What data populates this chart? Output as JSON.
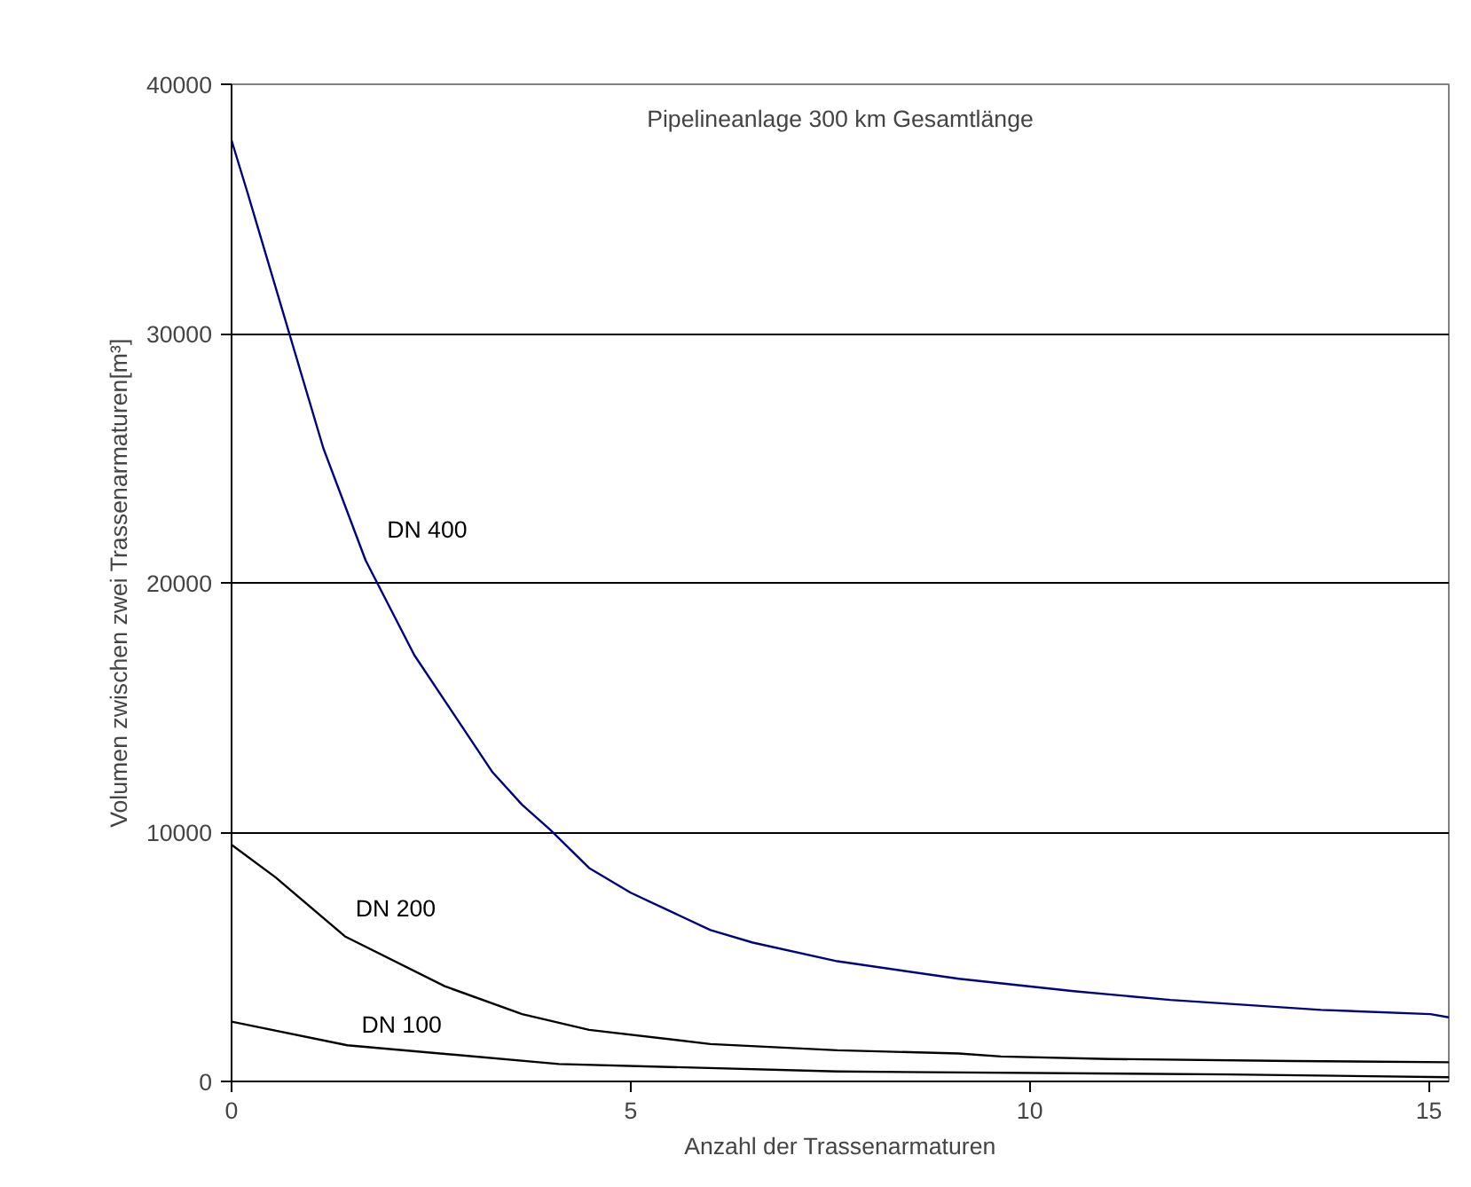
{
  "chart_data": {
    "type": "line",
    "title": "Pipelineanlage 300 km Gesamtlänge",
    "xlabel": "Anzahl der Trassenarmaturen",
    "ylabel": "Volumen zwischen zwei Trassenarmaturen[m³]",
    "xlim": [
      0,
      15.25
    ],
    "xticks": [
      0,
      5,
      10,
      15
    ],
    "ylim": [
      0,
      40000
    ],
    "yticks": [
      0,
      10000,
      20000,
      30000,
      40000
    ],
    "grid": "y",
    "series": [
      {
        "name": "DN 400",
        "color": "#000080",
        "x": [
          0,
          0.2,
          1.15,
          1.68,
          2.29,
          3.27,
          3.64,
          3.99,
          4.48,
          5,
          6,
          6.53,
          7.59,
          9.11,
          10.55,
          11.76,
          13.65,
          15.02,
          15.25
        ],
        "values": [
          37750,
          35650,
          25400,
          20900,
          17100,
          12400,
          11100,
          10100,
          8560,
          7570,
          6070,
          5570,
          4820,
          4120,
          3620,
          3270,
          2870,
          2700,
          2570
        ]
      },
      {
        "name": "DN 200",
        "color": "#000000",
        "x": [
          0,
          0.55,
          1.42,
          2.67,
          3.64,
          4.48,
          6,
          7.59,
          9.11,
          9.64,
          11,
          13.3,
          15.25
        ],
        "values": [
          9490,
          8190,
          5820,
          3820,
          2700,
          2070,
          1500,
          1250,
          1120,
          1000,
          900,
          820,
          770
        ]
      },
      {
        "name": "DN 100",
        "color": "#000000",
        "x": [
          0,
          1.45,
          4.1,
          7.59,
          8.75,
          12.5,
          15.25
        ],
        "values": [
          2400,
          1450,
          700,
          400,
          370,
          280,
          170
        ]
      }
    ]
  }
}
